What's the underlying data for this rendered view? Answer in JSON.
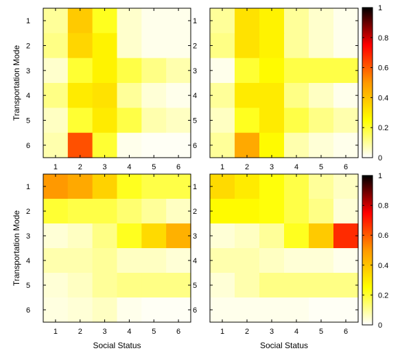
{
  "chart_data": {
    "type": "heatmap",
    "colormap": [
      "#ffffff",
      "#ffff00",
      "#ff9900",
      "#ff0000",
      "#000000"
    ],
    "colorbar": {
      "min": 0,
      "max": 1,
      "ticks": [
        "0",
        "0.2",
        "0.4",
        "0.6",
        "0.8",
        "1"
      ]
    },
    "x_ticks": [
      "1",
      "2",
      "3",
      "4",
      "5",
      "6"
    ],
    "y_ticks": [
      "1",
      "2",
      "3",
      "4",
      "5",
      "6"
    ],
    "xlabel": "Social Status",
    "ylabel": "Transportation Mode",
    "panels": [
      {
        "position": "top-left",
        "values": [
          [
            0.1,
            0.38,
            0.22,
            0.05,
            0.02,
            0.02
          ],
          [
            0.12,
            0.35,
            0.28,
            0.05,
            0.02,
            0.02
          ],
          [
            0.05,
            0.2,
            0.28,
            0.18,
            0.12,
            0.08
          ],
          [
            0.12,
            0.3,
            0.32,
            0.1,
            0.04,
            0.02
          ],
          [
            0.06,
            0.2,
            0.3,
            0.18,
            0.08,
            0.06
          ],
          [
            0.08,
            0.62,
            0.2,
            0.02,
            0.01,
            0.01
          ]
        ]
      },
      {
        "position": "top-right",
        "values": [
          [
            0.1,
            0.32,
            0.28,
            0.1,
            0.05,
            0.02
          ],
          [
            0.12,
            0.32,
            0.28,
            0.1,
            0.05,
            0.02
          ],
          [
            0.02,
            0.2,
            0.26,
            0.18,
            0.18,
            0.18
          ],
          [
            0.1,
            0.3,
            0.3,
            0.12,
            0.06,
            0.02
          ],
          [
            0.06,
            0.22,
            0.3,
            0.18,
            0.12,
            0.08
          ],
          [
            0.1,
            0.46,
            0.26,
            0.08,
            0.04,
            0.02
          ]
        ]
      },
      {
        "position": "bottom-left",
        "values": [
          [
            0.5,
            0.46,
            0.36,
            0.22,
            0.18,
            0.18
          ],
          [
            0.2,
            0.18,
            0.18,
            0.14,
            0.1,
            0.06
          ],
          [
            0.04,
            0.06,
            0.12,
            0.22,
            0.34,
            0.44
          ],
          [
            0.08,
            0.08,
            0.1,
            0.06,
            0.06,
            0.04
          ],
          [
            0.04,
            0.06,
            0.1,
            0.12,
            0.12,
            0.12
          ],
          [
            0.03,
            0.04,
            0.06,
            0.02,
            0.01,
            0.01
          ]
        ]
      },
      {
        "position": "bottom-right",
        "values": [
          [
            0.34,
            0.3,
            0.24,
            0.18,
            0.1,
            0.06
          ],
          [
            0.26,
            0.26,
            0.24,
            0.18,
            0.12,
            0.04
          ],
          [
            0.04,
            0.06,
            0.1,
            0.22,
            0.38,
            0.68
          ],
          [
            0.08,
            0.08,
            0.06,
            0.04,
            0.04,
            0.02
          ],
          [
            0.04,
            0.08,
            0.12,
            0.12,
            0.12,
            0.12
          ],
          [
            0.02,
            0.02,
            0.02,
            0.02,
            0.01,
            0.01
          ]
        ]
      }
    ]
  }
}
